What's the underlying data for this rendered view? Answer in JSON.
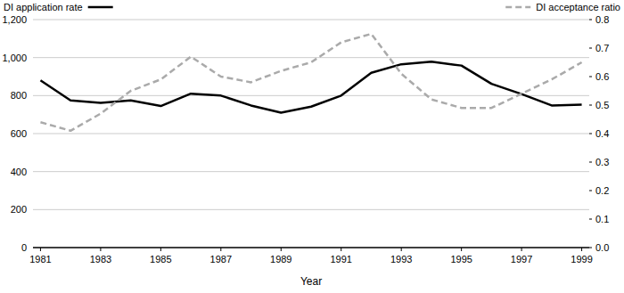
{
  "chart_data": {
    "type": "line",
    "x_label": "Year",
    "x": [
      1981,
      1982,
      1983,
      1984,
      1985,
      1986,
      1987,
      1988,
      1989,
      1990,
      1991,
      1992,
      1993,
      1994,
      1995,
      1996,
      1997,
      1998,
      1999
    ],
    "series": [
      {
        "name": "DI application rate",
        "color": "#000000",
        "line_style": "solid",
        "values": [
          880,
          775,
          762,
          775,
          745,
          810,
          800,
          748,
          710,
          742,
          800,
          920,
          965,
          978,
          958,
          862,
          808,
          748,
          752
        ]
      },
      {
        "name": "DI acceptance ratio",
        "color": "#aaaaaa",
        "line_style": "dashed",
        "axis": "y2",
        "values": [
          0.44,
          0.41,
          0.47,
          0.55,
          0.59,
          0.67,
          0.6,
          0.58,
          0.62,
          0.65,
          0.72,
          0.75,
          0.61,
          0.52,
          0.49,
          0.49,
          0.54,
          0.59,
          0.65
        ]
      }
    ],
    "xlim": [
      1980.75,
      1999.25
    ],
    "xticks": [
      1981,
      1983,
      1985,
      1987,
      1989,
      1991,
      1993,
      1995,
      1997,
      1999
    ],
    "ylim": [
      0,
      1200
    ],
    "yticks": [
      0,
      200,
      400,
      600,
      800,
      {
        "value": 1000,
        "label": "1,000"
      },
      {
        "value": 1200,
        "label": "1,200"
      }
    ],
    "y2lim": [
      0,
      0.8
    ],
    "y2ticks": [
      {
        "value": 0,
        "label": "0.0"
      },
      0.1,
      0.2,
      0.3,
      0.4,
      0.5,
      0.6,
      0.7,
      0.8
    ],
    "grid": true,
    "legend": "top"
  }
}
